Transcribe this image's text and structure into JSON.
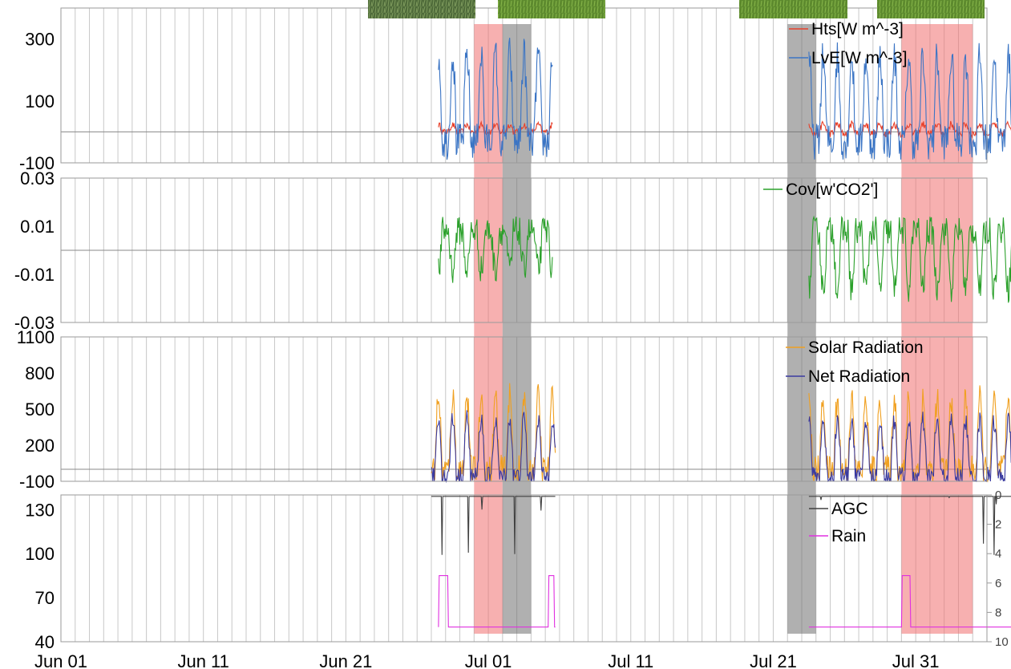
{
  "chart_data": {
    "type": "line",
    "x_ticks": [
      "Jun 01",
      "Jun 11",
      "Jun 21",
      "Jul 01",
      "Jul 11",
      "Jul 21",
      "Jul 31"
    ],
    "x_range_days": [
      0,
      67
    ],
    "shaded_periods": [
      {
        "color": "#f07070",
        "start": "Jun 30",
        "end": "Jul 02"
      },
      {
        "color": "#707070",
        "start": "Jul 02",
        "end": "Jul 04"
      },
      {
        "color": "#707070",
        "start": "Jul 22",
        "end": "Jul 24"
      },
      {
        "color": "#f07070",
        "start": "Jul 30",
        "end": "Aug 04"
      }
    ],
    "photos": [
      "canopy-photo-1",
      "canopy-photo-2",
      "canopy-photo-3",
      "canopy-photo-4"
    ],
    "panels": [
      {
        "y_ticks": [
          "300",
          "100",
          "-100"
        ],
        "ylim": [
          -100,
          400
        ],
        "series": [
          {
            "name": "Hts[W m^-3]",
            "color": "#e8402a",
            "segments": [
              {
                "start": 26.5,
                "end": 34.5,
                "base": 5,
                "day_amp": 18,
                "night": -5,
                "noise": 10
              },
              {
                "start": 52.5,
                "end": 67,
                "base": 5,
                "day_amp": 20,
                "night": -10,
                "noise": 12
              }
            ]
          },
          {
            "name": "LvE[W m^-3]",
            "color": "#3a74c4",
            "segments": [
              {
                "start": 26.5,
                "end": 34.5,
                "base": 0,
                "day_amp": 250,
                "night": -30,
                "noise": 60
              },
              {
                "start": 52.5,
                "end": 67,
                "base": 0,
                "day_amp": 240,
                "night": -30,
                "noise": 60
              }
            ]
          }
        ]
      },
      {
        "y_ticks": [
          "0.03",
          "0.01",
          "-0.01",
          "-0.03"
        ],
        "ylim": [
          -0.03,
          0.03
        ],
        "series": [
          {
            "name": "Cov[w'CO2']",
            "color": "#2aa02a",
            "segments": [
              {
                "start": 26.5,
                "end": 34.5,
                "base": 0.004,
                "day_amp": -0.012,
                "night": 0.004,
                "noise": 0.006
              },
              {
                "start": 52.5,
                "end": 67,
                "base": 0.004,
                "day_amp": -0.02,
                "night": 0.004,
                "noise": 0.006
              }
            ]
          }
        ]
      },
      {
        "y_ticks": [
          "1100",
          "800",
          "500",
          "200",
          "-100"
        ],
        "ylim": [
          -100,
          1100
        ],
        "series": [
          {
            "name": "Solar Radiation",
            "color": "#f0a020",
            "segments": [
              {
                "start": 26,
                "end": 34.7,
                "base": 0,
                "day_amp": 600,
                "night": 0,
                "noise": 120
              },
              {
                "start": 52.5,
                "end": 67,
                "base": 0,
                "day_amp": 580,
                "night": 0,
                "noise": 120
              }
            ]
          },
          {
            "name": "Net Radiation",
            "color": "#3a3aa0",
            "segments": [
              {
                "start": 26,
                "end": 34.7,
                "base": 0,
                "day_amp": 420,
                "night": -60,
                "noise": 80
              },
              {
                "start": 52.5,
                "end": 67,
                "base": 0,
                "day_amp": 400,
                "night": -60,
                "noise": 80
              }
            ]
          }
        ]
      },
      {
        "y_ticks": [
          "130",
          "100",
          "70",
          "40"
        ],
        "ylim": [
          40,
          140
        ],
        "y2_ticks": [
          "0",
          "2",
          "4",
          "6",
          "8",
          "10"
        ],
        "y2lim": [
          0,
          10
        ],
        "series": [
          {
            "name": "AGC",
            "color": "#404040",
            "segments": [
              {
                "start": 26,
                "end": 34.7,
                "base": 140,
                "day_amp": 0,
                "night": 0,
                "noise": 0
              },
              {
                "start": 52.5,
                "end": 67,
                "base": 140,
                "day_amp": 0,
                "night": 0,
                "noise": 0
              }
            ]
          },
          {
            "name": "Rain",
            "color": "#e030e0",
            "segments": [
              {
                "start": 26.5,
                "end": 34.7,
                "base": 50,
                "day_amp": 0,
                "night": 0,
                "noise": 0
              },
              {
                "start": 52.5,
                "end": 67,
                "base": 50,
                "day_amp": 0,
                "night": 0,
                "noise": 0
              }
            ]
          }
        ]
      }
    ]
  }
}
